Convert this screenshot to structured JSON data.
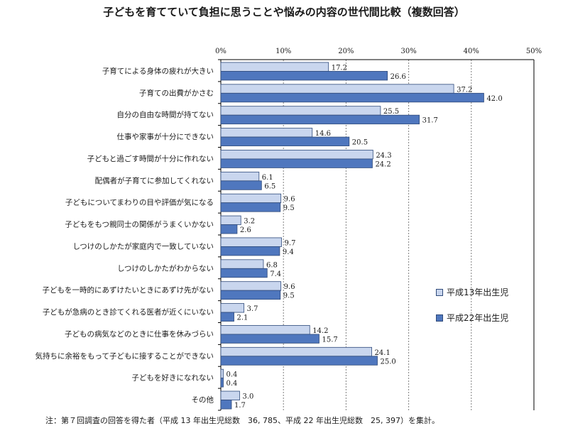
{
  "chart_data": {
    "type": "bar",
    "orientation": "horizontal",
    "title": "子どもを育てていて負担に思うことや悩みの内容の世代間比較（複数回答）",
    "xlim": [
      0,
      50
    ],
    "x_ticks": [
      "0%",
      "10%",
      "20%",
      "30%",
      "40%",
      "50%"
    ],
    "categories": [
      "子育てによる身体の疲れが大きい",
      "子育ての出費がかさむ",
      "自分の自由な時間が持てない",
      "仕事や家事が十分にできない",
      "子どもと過ごす時間が十分に作れない",
      "配偶者が子育てに参加してくれない",
      "子どもについてまわりの目や評価が気になる",
      "子どもをもつ親同士の関係がうまくいかない",
      "しつけのしかたが家庭内で一致していない",
      "しつけのしかたがわからない",
      "子どもを一時的にあずけたいときにあずけ先がない",
      "子どもが急病のとき診てくれる医者が近くにいない",
      "子どもの病気などのときに仕事を休みづらい",
      "気持ちに余裕をもって子どもに接することができない",
      "子どもを好きになれない",
      "その他"
    ],
    "series": [
      {
        "name": "平成13年出生児",
        "color": "#c9d6ee",
        "values": [
          17.2,
          37.2,
          25.5,
          14.6,
          24.3,
          6.1,
          9.6,
          3.2,
          9.7,
          6.8,
          9.6,
          3.7,
          14.2,
          24.1,
          0.4,
          3.0
        ]
      },
      {
        "name": "平成22年出生児",
        "color": "#4f77be",
        "values": [
          26.6,
          42.0,
          31.7,
          20.5,
          24.2,
          6.5,
          9.5,
          2.6,
          9.4,
          7.4,
          9.5,
          2.1,
          15.7,
          25.0,
          0.4,
          1.7
        ]
      }
    ],
    "legend_position": "right",
    "grid": true
  },
  "footnote": "注：第７回調査の回答を得た者（平成 13 年出生児総数　36, 785、平成 22 年出生児総数　25, 397）を集計。"
}
